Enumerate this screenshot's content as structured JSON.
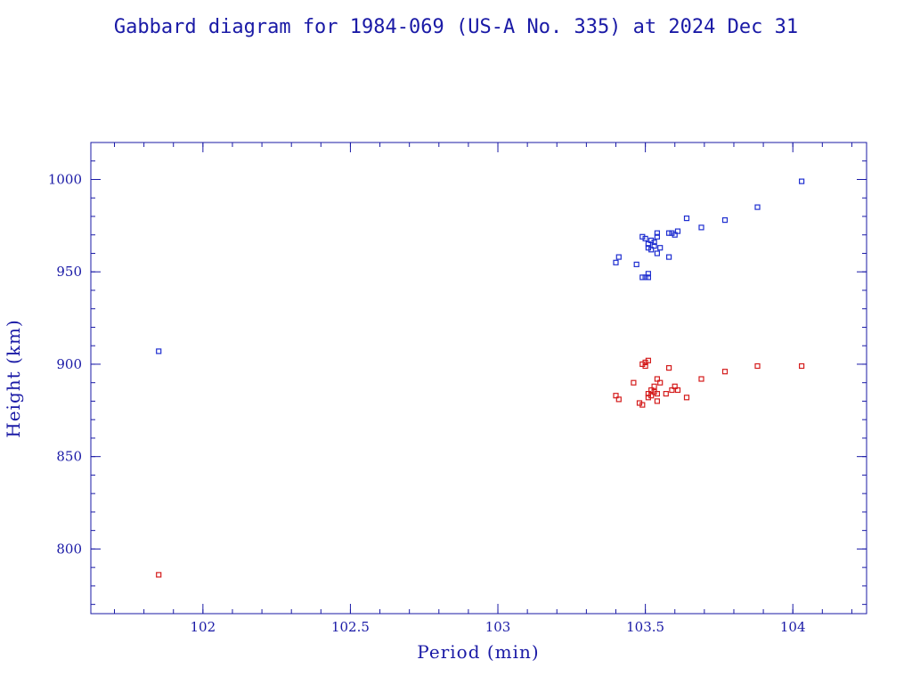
{
  "colors": {
    "axis": "#1a1aa6",
    "apogee": "#1f2fd0",
    "perigee": "#d41c1c",
    "background": "#ffffff"
  },
  "chart_data": {
    "type": "scatter",
    "title": "Gabbard diagram for 1984-069 (US-A No. 335) at 2024 Dec 31",
    "xlabel": "Period (min)",
    "ylabel": "Height (km)",
    "xlim": [
      101.62,
      104.25
    ],
    "ylim": [
      765,
      1020
    ],
    "xticks_major": [
      102,
      102.5,
      103,
      103.5,
      104
    ],
    "xticks_major_labels": [
      "102",
      "102.5",
      "103",
      "103.5",
      "104"
    ],
    "yticks_major": [
      800,
      850,
      900,
      950,
      1000
    ],
    "yticks_major_labels": [
      "800",
      "850",
      "900",
      "950",
      "1000"
    ],
    "xtick_minor_step": 0.1,
    "ytick_minor_step": 10,
    "grid": false,
    "series": [
      {
        "color": "#1f2fd0",
        "points": [
          [
            101.85,
            907
          ],
          [
            103.4,
            955
          ],
          [
            103.41,
            958
          ],
          [
            103.47,
            954
          ],
          [
            103.49,
            969
          ],
          [
            103.49,
            947
          ],
          [
            103.5,
            968
          ],
          [
            103.5,
            947
          ],
          [
            103.51,
            965
          ],
          [
            103.51,
            963
          ],
          [
            103.51,
            947
          ],
          [
            103.51,
            949
          ],
          [
            103.52,
            967
          ],
          [
            103.52,
            962
          ],
          [
            103.53,
            966
          ],
          [
            103.53,
            964
          ],
          [
            103.54,
            971
          ],
          [
            103.54,
            969
          ],
          [
            103.54,
            960
          ],
          [
            103.55,
            963
          ],
          [
            103.58,
            971
          ],
          [
            103.58,
            958
          ],
          [
            103.59,
            971
          ],
          [
            103.6,
            970
          ],
          [
            103.61,
            972
          ],
          [
            103.64,
            979
          ],
          [
            103.69,
            974
          ],
          [
            103.77,
            978
          ],
          [
            103.88,
            985
          ],
          [
            104.03,
            999
          ]
        ]
      },
      {
        "color": "#d41c1c",
        "points": [
          [
            101.85,
            786
          ],
          [
            103.4,
            883
          ],
          [
            103.41,
            881
          ],
          [
            103.46,
            890
          ],
          [
            103.48,
            879
          ],
          [
            103.49,
            878
          ],
          [
            103.49,
            900
          ],
          [
            103.5,
            899
          ],
          [
            103.5,
            901
          ],
          [
            103.51,
            902
          ],
          [
            103.51,
            884
          ],
          [
            103.51,
            882
          ],
          [
            103.52,
            886
          ],
          [
            103.52,
            883
          ],
          [
            103.53,
            888
          ],
          [
            103.53,
            885
          ],
          [
            103.54,
            892
          ],
          [
            103.54,
            880
          ],
          [
            103.54,
            884
          ],
          [
            103.55,
            890
          ],
          [
            103.57,
            884
          ],
          [
            103.58,
            898
          ],
          [
            103.59,
            886
          ],
          [
            103.6,
            888
          ],
          [
            103.61,
            886
          ],
          [
            103.64,
            882
          ],
          [
            103.69,
            892
          ],
          [
            103.77,
            896
          ],
          [
            103.88,
            899
          ],
          [
            104.03,
            899
          ]
        ]
      }
    ]
  }
}
